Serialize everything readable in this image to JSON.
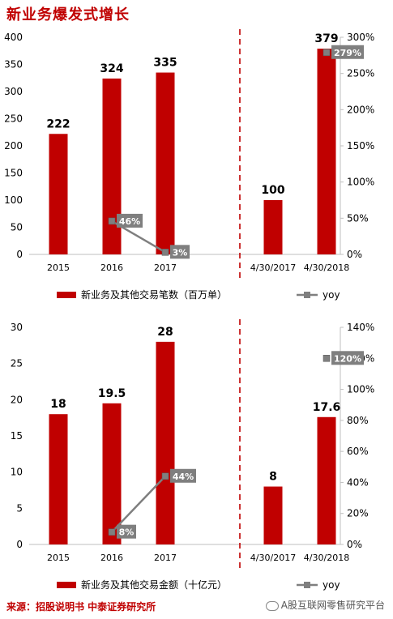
{
  "title": "新业务爆发式增长",
  "source": "来源：招股说明书  中泰证券研究所",
  "watermark": "A股互联网零售研究平台",
  "chart_data": [
    {
      "type": "bar",
      "categories": [
        "2015",
        "2016",
        "2017",
        "4/30/2017",
        "4/30/2018"
      ],
      "series": [
        {
          "name": "新业务及其他交易笔数（百万单）",
          "values": [
            222,
            324,
            335,
            100,
            379
          ],
          "labels": [
            "222",
            "324",
            "335",
            "100",
            "379"
          ],
          "color": "#c00000"
        },
        {
          "name": "yoy",
          "values": [
            null,
            46,
            3,
            null,
            279
          ],
          "labels": [
            null,
            "46%",
            "3%",
            null,
            "279%"
          ],
          "color": "#7f7f7f",
          "axis": "right"
        }
      ],
      "ylim": [
        0,
        400
      ],
      "yticks": [
        "0",
        "50",
        "100",
        "150",
        "200",
        "250",
        "300",
        "350",
        "400"
      ],
      "y2lim": [
        0,
        300
      ],
      "y2ticks": [
        "0%",
        "50%",
        "100%",
        "150%",
        "200%",
        "250%",
        "300%"
      ],
      "divider_after_category": 2,
      "legend_position": "bottom"
    },
    {
      "type": "bar",
      "categories": [
        "2015",
        "2016",
        "2017",
        "4/30/2017",
        "4/30/2018"
      ],
      "series": [
        {
          "name": "新业务及其他交易金额（十亿元）",
          "values": [
            18,
            19.5,
            28,
            8,
            17.6
          ],
          "labels": [
            "18",
            "19.5",
            "28",
            "8",
            "17.6"
          ],
          "color": "#c00000"
        },
        {
          "name": "yoy",
          "values": [
            null,
            8,
            44,
            null,
            120
          ],
          "labels": [
            null,
            "8%",
            "44%",
            null,
            "120%"
          ],
          "color": "#7f7f7f",
          "axis": "right"
        }
      ],
      "ylim": [
        0,
        30
      ],
      "yticks": [
        "0",
        "5",
        "10",
        "15",
        "20",
        "25",
        "30"
      ],
      "y2lim": [
        0,
        140
      ],
      "y2ticks": [
        "0%",
        "20%",
        "40%",
        "60%",
        "80%",
        "100%",
        "120%",
        "140%"
      ],
      "divider_after_category": 2,
      "legend_position": "bottom"
    }
  ]
}
